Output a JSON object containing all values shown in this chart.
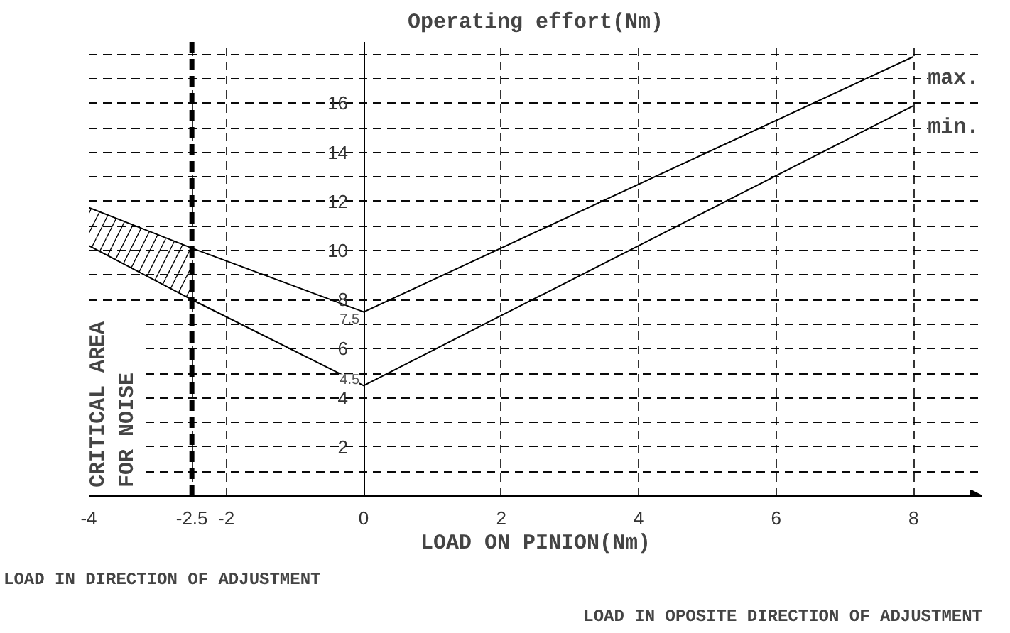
{
  "chart_data": {
    "type": "line",
    "ylabel": "Operating effort(Nm)",
    "xlabel": "LOAD ON PINION(Nm)",
    "x": [
      -4,
      -2.5,
      0,
      8
    ],
    "series": [
      {
        "name": "max.",
        "color": "#000000",
        "values": [
          11.75,
          10.1,
          7.5,
          17.9
        ],
        "upper": [
          11.75,
          10.1,
          null,
          null
        ],
        "lower": [
          10.2,
          8.0,
          null,
          null
        ]
      },
      {
        "name": "min.",
        "color": "#000000",
        "values": [
          10.2,
          8.0,
          4.5,
          15.9
        ]
      }
    ],
    "xlim": [
      -4,
      9
    ],
    "ylim": [
      0,
      18.5
    ],
    "xticks": [
      -4,
      -2.5,
      -2,
      0,
      2,
      4,
      6,
      8
    ],
    "yticks": [
      {
        "value": 1,
        "label": null
      },
      2,
      {
        "value": 3,
        "label": null
      },
      4,
      {
        "value": 5,
        "label": null
      },
      6,
      {
        "value": 7,
        "label": null
      },
      8,
      {
        "value": 9,
        "label": null
      },
      10,
      {
        "value": 11,
        "label": null
      },
      12,
      {
        "value": 13,
        "label": null
      },
      14,
      {
        "value": 15,
        "label": null
      },
      16,
      {
        "value": 17,
        "label": null
      },
      {
        "value": 18,
        "label": null
      }
    ],
    "grid": true,
    "ref_lines": [
      {
        "axis": "x",
        "value": -2.5,
        "line_style": "dashed",
        "color": "#000000"
      }
    ],
    "annotations": [
      {
        "text": "7.5",
        "x": 0,
        "y": 7.5
      },
      {
        "text": "4.5",
        "x": 0,
        "y": 4.5
      },
      "CRITICAL AREA\nFOR NOISE",
      "LOAD IN DIRECTION OF ADJUSTMENT",
      "LOAD IN OPOSITE DIRECTION OF ADJUSTMENT"
    ]
  }
}
